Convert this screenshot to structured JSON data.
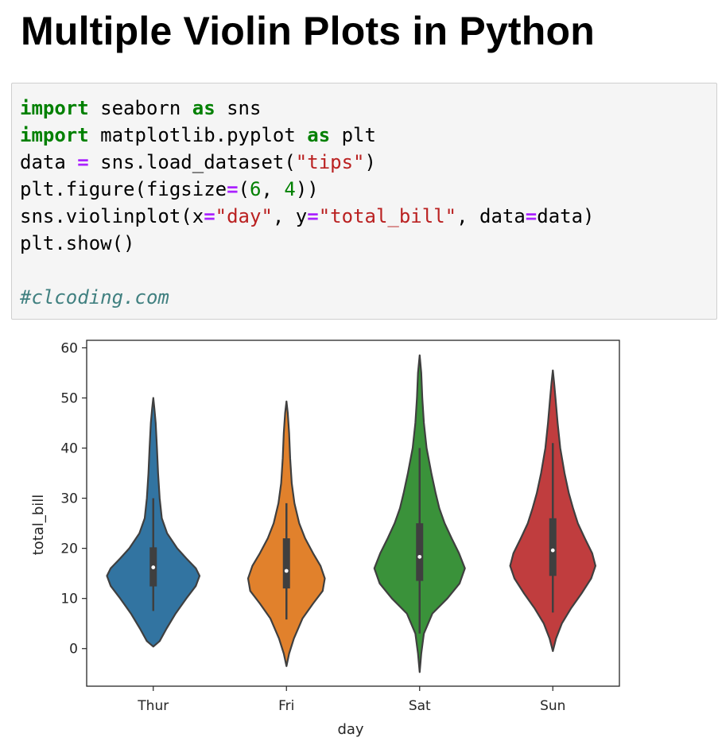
{
  "header": {
    "title": "Multiple Violin Plots in Python"
  },
  "code": {
    "line1": {
      "kw1": "import",
      "t1": " seaborn ",
      "kw2": "as",
      "t2": " sns"
    },
    "line2": {
      "kw1": "import",
      "t1": " matplotlib.pyplot ",
      "kw2": "as",
      "t2": " plt"
    },
    "line3": {
      "t1": "data ",
      "op1": "=",
      "t2": " sns.load_dataset(",
      "s1": "\"tips\"",
      "t3": ")"
    },
    "line4": {
      "t1": "plt.figure(figsize",
      "op1": "=",
      "t2": "(",
      "n1": "6",
      "t3": ", ",
      "n2": "4",
      "t4": "))"
    },
    "line5": {
      "t1": "sns.violinplot(x",
      "op1": "=",
      "s1": "\"day\"",
      "t2": ", y",
      "op2": "=",
      "s2": "\"total_bill\"",
      "t3": ", data",
      "op3": "=",
      "t4": "data)"
    },
    "line6": {
      "t1": "plt.show()"
    },
    "line8": {
      "c1": "#clcoding.com"
    }
  },
  "chart_data": {
    "type": "violin",
    "xlabel": "day",
    "ylabel": "total_bill",
    "ylim": [
      -7.5,
      61.5
    ],
    "yticks": [
      0,
      10,
      20,
      30,
      40,
      50,
      60
    ],
    "categories": [
      "Thur",
      "Fri",
      "Sat",
      "Sun"
    ],
    "colors": [
      "#3274a1",
      "#e1812c",
      "#3a923a",
      "#c03d3e"
    ],
    "series": [
      {
        "category": "Thur",
        "extent": [
          0.4,
          50.0
        ],
        "whisker": [
          7.5,
          30.0
        ],
        "q1": 12.4,
        "median": 16.2,
        "q3": 20.2,
        "profile": [
          [
            0.4,
            0.0
          ],
          [
            1.5,
            0.12
          ],
          [
            4,
            0.25
          ],
          [
            7,
            0.42
          ],
          [
            10,
            0.62
          ],
          [
            12.5,
            0.8
          ],
          [
            14.5,
            0.87
          ],
          [
            16,
            0.8
          ],
          [
            18,
            0.62
          ],
          [
            20,
            0.45
          ],
          [
            23,
            0.26
          ],
          [
            26,
            0.16
          ],
          [
            30,
            0.12
          ],
          [
            35,
            0.09
          ],
          [
            40,
            0.07
          ],
          [
            45,
            0.045
          ],
          [
            48,
            0.02
          ],
          [
            50,
            0.0
          ]
        ]
      },
      {
        "category": "Fri",
        "extent": [
          -3.5,
          49.3
        ],
        "whisker": [
          5.8,
          29.0
        ],
        "q1": 12.0,
        "median": 15.5,
        "q3": 22.0,
        "profile": [
          [
            -3.5,
            0.0
          ],
          [
            -1,
            0.05
          ],
          [
            2,
            0.14
          ],
          [
            6,
            0.3
          ],
          [
            9,
            0.5
          ],
          [
            11.5,
            0.68
          ],
          [
            14,
            0.72
          ],
          [
            16.5,
            0.64
          ],
          [
            19,
            0.5
          ],
          [
            22,
            0.35
          ],
          [
            25,
            0.24
          ],
          [
            29,
            0.15
          ],
          [
            33,
            0.1
          ],
          [
            38,
            0.07
          ],
          [
            43,
            0.05
          ],
          [
            47,
            0.025
          ],
          [
            49.3,
            0.0
          ]
        ]
      },
      {
        "category": "Sat",
        "extent": [
          -4.7,
          58.5
        ],
        "whisker": [
          3.0,
          40.0
        ],
        "q1": 13.5,
        "median": 18.3,
        "q3": 25.0,
        "profile": [
          [
            -4.7,
            0.0
          ],
          [
            -1,
            0.03
          ],
          [
            3,
            0.08
          ],
          [
            7,
            0.24
          ],
          [
            10,
            0.52
          ],
          [
            13,
            0.75
          ],
          [
            16,
            0.85
          ],
          [
            19,
            0.74
          ],
          [
            22,
            0.6
          ],
          [
            25,
            0.47
          ],
          [
            28,
            0.37
          ],
          [
            31,
            0.3
          ],
          [
            35,
            0.22
          ],
          [
            40,
            0.13
          ],
          [
            45,
            0.08
          ],
          [
            50,
            0.05
          ],
          [
            55,
            0.03
          ],
          [
            58.5,
            0.0
          ]
        ]
      },
      {
        "category": "Sun",
        "extent": [
          -0.5,
          55.5
        ],
        "whisker": [
          7.2,
          41.0
        ],
        "q1": 14.5,
        "median": 19.6,
        "q3": 26.0,
        "profile": [
          [
            -0.5,
            0.0
          ],
          [
            2,
            0.06
          ],
          [
            5,
            0.17
          ],
          [
            8,
            0.34
          ],
          [
            11,
            0.54
          ],
          [
            14,
            0.72
          ],
          [
            16.5,
            0.8
          ],
          [
            19,
            0.74
          ],
          [
            22,
            0.6
          ],
          [
            25,
            0.47
          ],
          [
            28,
            0.38
          ],
          [
            31,
            0.3
          ],
          [
            35,
            0.22
          ],
          [
            40,
            0.14
          ],
          [
            45,
            0.09
          ],
          [
            50,
            0.05
          ],
          [
            53,
            0.025
          ],
          [
            55.5,
            0.0
          ]
        ]
      }
    ]
  }
}
